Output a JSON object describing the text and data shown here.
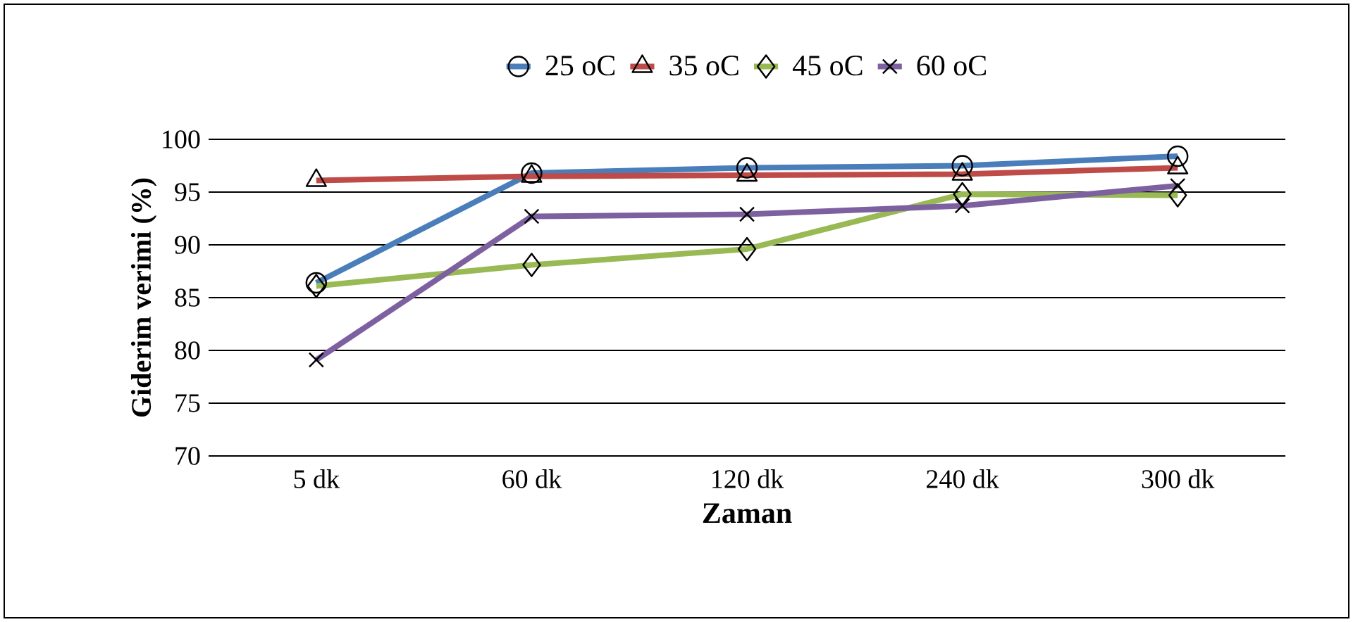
{
  "chart_data": {
    "type": "line",
    "xlabel": "Zaman",
    "ylabel": "Giderim verimi (%)",
    "categories": [
      "5 dk",
      "60 dk",
      "120 dk",
      "240 dk",
      "300 dk"
    ],
    "series": [
      {
        "name": "25 oC",
        "color": "#4a7ebb",
        "marker": "circle",
        "values": [
          86.4,
          96.8,
          97.3,
          97.5,
          98.4
        ]
      },
      {
        "name": "35 oC",
        "color": "#be4b48",
        "marker": "triangle",
        "values": [
          96.1,
          96.5,
          96.6,
          96.7,
          97.3
        ]
      },
      {
        "name": "45 oC",
        "color": "#98b954",
        "marker": "diamond",
        "values": [
          86.1,
          88.1,
          89.6,
          94.8,
          94.7
        ]
      },
      {
        "name": "60 oC",
        "color": "#7d60a0",
        "marker": "cross",
        "values": [
          79.1,
          92.7,
          92.9,
          93.7,
          95.6
        ]
      }
    ],
    "ylim": [
      70,
      100
    ],
    "yticks": [
      70,
      75,
      80,
      85,
      90,
      95,
      100
    ],
    "grid": "y",
    "legend": "top",
    "line_style": "solid"
  }
}
